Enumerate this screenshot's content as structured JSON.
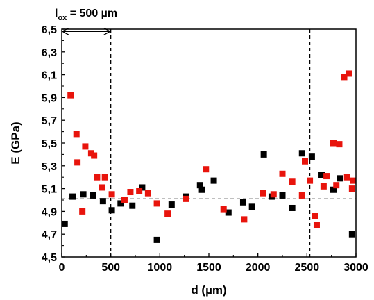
{
  "chart_data": {
    "type": "scatter",
    "xlabel": "d (µm)",
    "ylabel": "E (GPa)",
    "xlim": [
      0,
      3000
    ],
    "ylim": [
      4.5,
      6.5
    ],
    "xticks": [
      0,
      500,
      1000,
      1500,
      2000,
      2500,
      3000
    ],
    "xtick_labels": [
      "0",
      "500",
      "1000",
      "1500",
      "2000",
      "2500",
      "3000"
    ],
    "yticks": [
      4.5,
      4.7,
      4.9,
      5.1,
      5.3,
      5.5,
      5.7,
      5.9,
      6.1,
      6.3,
      6.5
    ],
    "ytick_labels": [
      "4,5",
      "4,7",
      "4,9",
      "5,1",
      "5,3",
      "5,5",
      "5,7",
      "5,9",
      "6,1",
      "6,3",
      "6,5"
    ],
    "grid": false,
    "annotation": {
      "label_main": "l",
      "label_sub": "ox",
      "label_rest": " = 500 µm",
      "arrow_from": 0,
      "arrow_to": 500,
      "arrow_y": 6.48
    },
    "reference_lines": {
      "vertical": [
        500,
        2530
      ],
      "horizontal": 5.01
    },
    "series": [
      {
        "color": "#000000",
        "points": [
          [
            30,
            4.79
          ],
          [
            110,
            5.03
          ],
          [
            220,
            5.05
          ],
          [
            320,
            5.04
          ],
          [
            420,
            4.99
          ],
          [
            510,
            4.91
          ],
          [
            600,
            4.97
          ],
          [
            720,
            4.95
          ],
          [
            820,
            5.11
          ],
          [
            970,
            4.65
          ],
          [
            1120,
            4.96
          ],
          [
            1270,
            5.03
          ],
          [
            1410,
            5.13
          ],
          [
            1430,
            5.09
          ],
          [
            1550,
            5.17
          ],
          [
            1700,
            4.89
          ],
          [
            1850,
            4.98
          ],
          [
            1940,
            4.94
          ],
          [
            2060,
            5.4
          ],
          [
            2140,
            5.03
          ],
          [
            2250,
            5.04
          ],
          [
            2350,
            4.93
          ],
          [
            2450,
            5.41
          ],
          [
            2550,
            5.38
          ],
          [
            2650,
            5.22
          ],
          [
            2770,
            5.09
          ],
          [
            2840,
            5.19
          ],
          [
            2960,
            4.7
          ]
        ]
      },
      {
        "color": "#e8140c",
        "points": [
          [
            90,
            5.92
          ],
          [
            150,
            5.58
          ],
          [
            160,
            5.33
          ],
          [
            210,
            4.9
          ],
          [
            240,
            5.47
          ],
          [
            300,
            5.41
          ],
          [
            330,
            5.39
          ],
          [
            360,
            5.2
          ],
          [
            410,
            5.11
          ],
          [
            440,
            5.2
          ],
          [
            510,
            5.05
          ],
          [
            640,
            5.0
          ],
          [
            700,
            5.07
          ],
          [
            790,
            5.08
          ],
          [
            880,
            5.06
          ],
          [
            970,
            4.97
          ],
          [
            1080,
            4.88
          ],
          [
            1270,
            5.01
          ],
          [
            1470,
            5.27
          ],
          [
            1650,
            4.92
          ],
          [
            1860,
            4.83
          ],
          [
            2050,
            5.06
          ],
          [
            2160,
            5.05
          ],
          [
            2250,
            5.23
          ],
          [
            2350,
            5.16
          ],
          [
            2450,
            5.04
          ],
          [
            2480,
            5.34
          ],
          [
            2530,
            5.17
          ],
          [
            2580,
            4.86
          ],
          [
            2600,
            4.78
          ],
          [
            2670,
            5.12
          ],
          [
            2700,
            5.21
          ],
          [
            2770,
            5.5
          ],
          [
            2800,
            5.13
          ],
          [
            2830,
            5.49
          ],
          [
            2880,
            6.08
          ],
          [
            2910,
            5.2
          ],
          [
            2930,
            6.11
          ],
          [
            2960,
            5.1
          ],
          [
            2970,
            5.17
          ]
        ]
      }
    ]
  }
}
